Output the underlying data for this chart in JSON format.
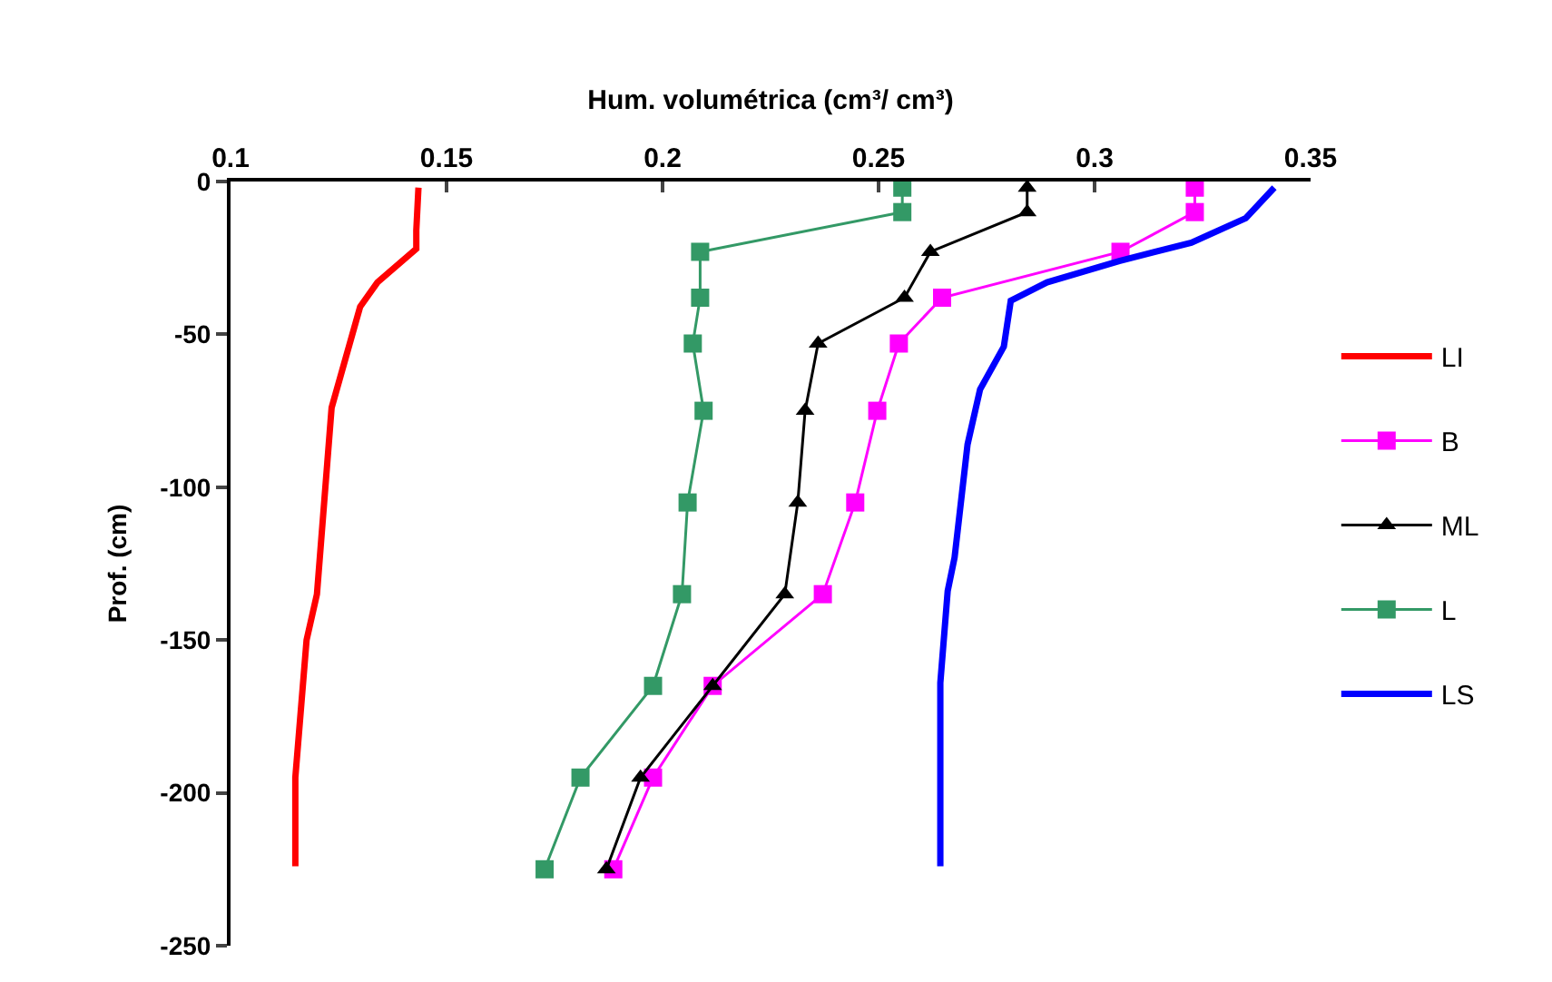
{
  "chart_data": {
    "type": "line",
    "xlabel": "Hum. volumétrica (cm³/ cm³)",
    "ylabel": "Prof. (cm)",
    "xlim": [
      0.1,
      0.35
    ],
    "xticks": [
      0.1,
      0.15,
      0.2,
      0.25,
      0.3,
      0.35
    ],
    "ylim": [
      -250,
      0
    ],
    "yticks": [
      0,
      -50,
      -100,
      -150,
      -200,
      -250
    ],
    "legend": "right",
    "series": [
      {
        "name": "LI",
        "color": "#ff0000",
        "marker": "none",
        "x": [
          0.1435,
          0.143,
          0.143,
          0.134,
          0.13,
          0.1234,
          0.12,
          0.1176,
          0.115,
          0.115
        ],
        "values": [
          -2,
          -16,
          -22,
          -33,
          -41,
          -74,
          -135,
          -150,
          -195,
          -224
        ]
      },
      {
        "name": "B",
        "color": "#ff00ff",
        "marker": "square",
        "x": [
          0.3232,
          0.3232,
          0.306,
          0.2647,
          0.2547,
          0.2497,
          0.2446,
          0.2371,
          0.2116,
          0.1978,
          0.1886
        ],
        "values": [
          -2,
          -10,
          -23,
          -38,
          -53,
          -75,
          -105,
          -135,
          -165,
          -195,
          -225
        ]
      },
      {
        "name": "ML",
        "color": "#000000",
        "marker": "triangle",
        "x": [
          0.2844,
          0.2844,
          0.262,
          0.256,
          0.236,
          0.233,
          0.2313,
          0.2283,
          0.2116,
          0.1949,
          0.187
        ],
        "values": [
          -2,
          -10,
          -23,
          -38,
          -53,
          -75,
          -105,
          -135,
          -165,
          -195,
          -225
        ]
      },
      {
        "name": "L",
        "color": "#339966",
        "marker": "square",
        "x": [
          0.2555,
          0.2555,
          0.2087,
          0.2087,
          0.207,
          0.2095,
          0.2058,
          0.2045,
          0.1978,
          0.181,
          0.1727
        ],
        "values": [
          -2,
          -10,
          -23,
          -38,
          -53,
          -75,
          -105,
          -135,
          -165,
          -195,
          -225
        ]
      },
      {
        "name": "LS",
        "color": "#0000ff",
        "marker": "none",
        "x": [
          0.3416,
          0.335,
          0.3224,
          0.3057,
          0.289,
          0.2806,
          0.279,
          0.2735,
          0.2706,
          0.2676,
          0.266,
          0.2643,
          0.2643
        ],
        "values": [
          -2,
          -12,
          -20,
          -26,
          -33,
          -39,
          -54,
          -68,
          -86,
          -123,
          -134,
          -164,
          -224
        ]
      }
    ]
  }
}
